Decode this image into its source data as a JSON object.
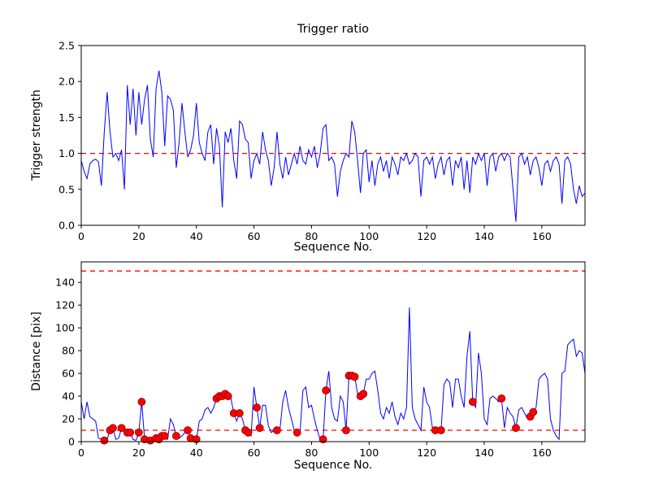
{
  "figure": {
    "background": "#ffffff",
    "line_color": "#0000ff",
    "threshold_color": "#ff0000",
    "marker_color": "#ff0000",
    "axis_color": "#000000"
  },
  "chart_data": [
    {
      "type": "line",
      "title": "Trigger ratio",
      "xlabel": "Sequence No.",
      "ylabel": "Trigger strength",
      "xlim": [
        0,
        175
      ],
      "ylim": [
        0,
        2.5
      ],
      "xticks": [
        0,
        20,
        40,
        60,
        80,
        100,
        120,
        140,
        160
      ],
      "yticks": [
        0,
        0.5,
        1.0,
        1.5,
        2.0,
        2.5
      ],
      "ytick_decimals": 1,
      "grid": false,
      "legend": "none",
      "thresholds": [
        1.0
      ],
      "x_start": 0,
      "series": [
        {
          "name": "trigger-strength",
          "color": "#0000ff",
          "values": [
            0.9,
            0.75,
            0.65,
            0.85,
            0.9,
            0.92,
            0.88,
            0.55,
            1.3,
            1.85,
            1.3,
            0.95,
            1.0,
            0.9,
            1.05,
            0.5,
            1.95,
            1.4,
            1.9,
            1.25,
            1.85,
            1.4,
            1.75,
            1.95,
            1.2,
            0.95,
            1.9,
            2.15,
            1.85,
            1.1,
            1.8,
            1.75,
            1.6,
            0.8,
            1.15,
            1.7,
            1.3,
            0.95,
            1.05,
            1.25,
            1.7,
            1.15,
            1.0,
            0.9,
            1.3,
            1.4,
            0.85,
            1.35,
            1.1,
            0.25,
            1.3,
            1.15,
            1.35,
            0.9,
            0.65,
            1.45,
            1.4,
            1.2,
            1.15,
            0.65,
            0.9,
            1.0,
            0.85,
            1.3,
            1.05,
            0.9,
            0.55,
            0.8,
            1.3,
            0.85,
            0.65,
            0.95,
            0.7,
            0.85,
            1.0,
            0.85,
            1.1,
            0.9,
            0.85,
            1.05,
            0.95,
            1.1,
            0.8,
            1.0,
            1.35,
            1.4,
            0.9,
            0.95,
            0.85,
            0.4,
            0.75,
            0.9,
            1.0,
            0.95,
            1.45,
            1.3,
            0.9,
            0.45,
            1.0,
            1.05,
            0.6,
            0.9,
            0.55,
            0.85,
            0.95,
            0.75,
            0.9,
            0.65,
            0.95,
            0.85,
            0.7,
            0.95,
            0.9,
            1.0,
            0.85,
            0.9,
            1.0,
            0.95,
            0.4,
            0.9,
            0.95,
            0.85,
            0.95,
            0.65,
            0.85,
            0.95,
            0.7,
            0.9,
            0.95,
            0.55,
            0.9,
            0.8,
            0.95,
            0.5,
            0.9,
            0.45,
            0.95,
            0.85,
            1.0,
            0.9,
            1.0,
            0.55,
            0.95,
            1.0,
            0.75,
            0.95,
            1.0,
            0.9,
            1.0,
            0.95,
            0.5,
            0.05,
            0.95,
            1.0,
            0.85,
            0.95,
            0.7,
            0.9,
            0.95,
            0.8,
            0.55,
            0.85,
            0.9,
            0.75,
            0.9,
            0.95,
            0.85,
            0.3,
            0.9,
            0.95,
            0.85,
            0.5,
            0.3,
            0.55,
            0.4,
            0.45
          ]
        }
      ]
    },
    {
      "type": "line",
      "title": "",
      "xlabel": "Sequence No.",
      "ylabel": "Distance [pix]",
      "xlim": [
        0,
        175
      ],
      "ylim": [
        0,
        158
      ],
      "xticks": [
        0,
        20,
        40,
        60,
        80,
        100,
        120,
        140,
        160
      ],
      "yticks": [
        0,
        20,
        40,
        60,
        80,
        100,
        120,
        140
      ],
      "ytick_decimals": 0,
      "grid": false,
      "legend": "none",
      "thresholds": [
        150,
        10
      ],
      "x_start": 0,
      "series": [
        {
          "name": "distance",
          "color": "#0000ff",
          "values": [
            35,
            20,
            35,
            22,
            20,
            18,
            3,
            2,
            1,
            2,
            10,
            12,
            2,
            3,
            12,
            10,
            8,
            8,
            2,
            1,
            8,
            35,
            2,
            3,
            1,
            2,
            3,
            2,
            5,
            5,
            2,
            20,
            15,
            5,
            3,
            5,
            8,
            10,
            3,
            2,
            2,
            18,
            20,
            28,
            30,
            25,
            30,
            38,
            40,
            40,
            42,
            40,
            38,
            25,
            18,
            25,
            20,
            10,
            8,
            5,
            48,
            30,
            12,
            32,
            32,
            14,
            8,
            10,
            10,
            10,
            35,
            45,
            30,
            20,
            10,
            8,
            8,
            45,
            48,
            30,
            32,
            20,
            10,
            2,
            2,
            45,
            62,
            30,
            20,
            18,
            40,
            35,
            10,
            58,
            58,
            57,
            42,
            40,
            42,
            55,
            55,
            60,
            62,
            45,
            25,
            20,
            30,
            25,
            35,
            22,
            15,
            25,
            20,
            30,
            118,
            30,
            20,
            15,
            10,
            48,
            35,
            30,
            12,
            10,
            12,
            10,
            50,
            55,
            52,
            30,
            55,
            55,
            40,
            30,
            75,
            97,
            35,
            30,
            78,
            60,
            20,
            15,
            38,
            40,
            38,
            35,
            38,
            12,
            30,
            25,
            22,
            12,
            28,
            30,
            25,
            20,
            22,
            26,
            30,
            55,
            58,
            60,
            55,
            20,
            10,
            5,
            2,
            60,
            62,
            85,
            88,
            90,
            75,
            80,
            78,
            60
          ]
        }
      ],
      "scatter": {
        "name": "trigger-event",
        "color": "#ff0000",
        "points": [
          [
            8,
            1
          ],
          [
            10,
            10
          ],
          [
            11,
            12
          ],
          [
            14,
            12
          ],
          [
            16,
            8
          ],
          [
            17,
            8
          ],
          [
            20,
            8
          ],
          [
            21,
            35
          ],
          [
            22,
            2
          ],
          [
            24,
            1
          ],
          [
            26,
            3
          ],
          [
            27,
            2
          ],
          [
            28,
            5
          ],
          [
            29,
            5
          ],
          [
            33,
            5
          ],
          [
            37,
            10
          ],
          [
            38,
            3
          ],
          [
            40,
            2
          ],
          [
            47,
            38
          ],
          [
            48,
            40
          ],
          [
            49,
            40
          ],
          [
            50,
            42
          ],
          [
            51,
            40
          ],
          [
            53,
            25
          ],
          [
            55,
            25
          ],
          [
            57,
            10
          ],
          [
            58,
            8
          ],
          [
            61,
            30
          ],
          [
            62,
            12
          ],
          [
            68,
            10
          ],
          [
            75,
            8
          ],
          [
            84,
            2
          ],
          [
            85,
            45
          ],
          [
            92,
            10
          ],
          [
            93,
            58
          ],
          [
            94,
            58
          ],
          [
            95,
            57
          ],
          [
            97,
            40
          ],
          [
            98,
            42
          ],
          [
            123,
            10
          ],
          [
            125,
            10
          ],
          [
            136,
            35
          ],
          [
            146,
            38
          ],
          [
            151,
            12
          ],
          [
            156,
            22
          ],
          [
            157,
            26
          ]
        ]
      }
    }
  ]
}
